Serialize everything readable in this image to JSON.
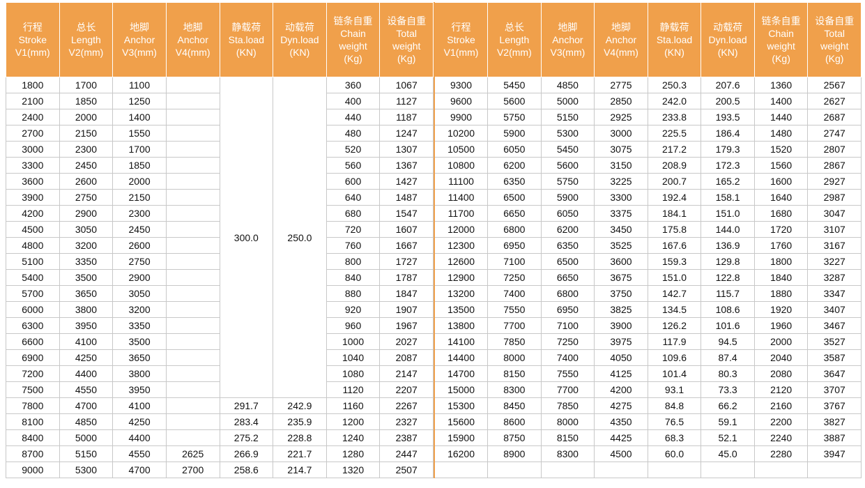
{
  "header": [
    [
      "行程",
      "Stroke",
      "V1(mm)"
    ],
    [
      "总长",
      "Length",
      "V2(mm)"
    ],
    [
      "地脚",
      "Anchor",
      "V3(mm)"
    ],
    [
      "地脚",
      "Anchor",
      "V4(mm)"
    ],
    [
      "静载荷",
      "Sta.load",
      "(KN)"
    ],
    [
      "动载荷",
      "Dyn.load",
      "(KN)"
    ],
    [
      "链条自重",
      "Chain",
      "weight",
      "(Kg)"
    ],
    [
      "设备自重",
      "Total",
      "weight",
      "(Kg)"
    ]
  ],
  "table": {
    "left": {
      "merged": [
        "300.0",
        "250.0"
      ],
      "rows": [
        [
          "1800",
          "1700",
          "1100",
          null,
          null,
          null,
          "360",
          "1067"
        ],
        [
          "2100",
          "1850",
          "1250",
          null,
          null,
          null,
          "400",
          "1127"
        ],
        [
          "2400",
          "2000",
          "1400",
          null,
          null,
          null,
          "440",
          "1187"
        ],
        [
          "2700",
          "2150",
          "1550",
          null,
          null,
          null,
          "480",
          "1247"
        ],
        [
          "3000",
          "2300",
          "1700",
          null,
          null,
          null,
          "520",
          "1307"
        ],
        [
          "3300",
          "2450",
          "1850",
          null,
          null,
          null,
          "560",
          "1367"
        ],
        [
          "3600",
          "2600",
          "2000",
          null,
          null,
          null,
          "600",
          "1427"
        ],
        [
          "3900",
          "2750",
          "2150",
          null,
          null,
          null,
          "640",
          "1487"
        ],
        [
          "4200",
          "2900",
          "2300",
          null,
          null,
          null,
          "680",
          "1547"
        ],
        [
          "4500",
          "3050",
          "2450",
          null,
          null,
          null,
          "720",
          "1607"
        ],
        [
          "4800",
          "3200",
          "2600",
          null,
          null,
          null,
          "760",
          "1667"
        ],
        [
          "5100",
          "3350",
          "2750",
          null,
          null,
          null,
          "800",
          "1727"
        ],
        [
          "5400",
          "3500",
          "2900",
          null,
          null,
          null,
          "840",
          "1787"
        ],
        [
          "5700",
          "3650",
          "3050",
          null,
          null,
          null,
          "880",
          "1847"
        ],
        [
          "6000",
          "3800",
          "3200",
          null,
          null,
          null,
          "920",
          "1907"
        ],
        [
          "6300",
          "3950",
          "3350",
          null,
          null,
          null,
          "960",
          "1967"
        ],
        [
          "6600",
          "4100",
          "3500",
          null,
          null,
          null,
          "1000",
          "2027"
        ],
        [
          "6900",
          "4250",
          "3650",
          null,
          null,
          null,
          "1040",
          "2087"
        ],
        [
          "7200",
          "4400",
          "3800",
          null,
          null,
          null,
          "1080",
          "2147"
        ],
        [
          "7500",
          "4550",
          "3950",
          null,
          null,
          null,
          "1120",
          "2207"
        ],
        [
          "7800",
          "4700",
          "4100",
          null,
          "291.7",
          "242.9",
          "1160",
          "2267"
        ],
        [
          "8100",
          "4850",
          "4250",
          null,
          "283.4",
          "235.9",
          "1200",
          "2327"
        ],
        [
          "8400",
          "5000",
          "4400",
          null,
          "275.2",
          "228.8",
          "1240",
          "2387"
        ],
        [
          "8700",
          "5150",
          "4550",
          "2625",
          "266.9",
          "221.7",
          "1280",
          "2447"
        ],
        [
          "9000",
          "5300",
          "4700",
          "2700",
          "258.6",
          "214.7",
          "1320",
          "2507"
        ]
      ]
    },
    "right": {
      "rows": [
        [
          "9300",
          "5450",
          "4850",
          "2775",
          "250.3",
          "207.6",
          "1360",
          "2567"
        ],
        [
          "9600",
          "5600",
          "5000",
          "2850",
          "242.0",
          "200.5",
          "1400",
          "2627"
        ],
        [
          "9900",
          "5750",
          "5150",
          "2925",
          "233.8",
          "193.5",
          "1440",
          "2687"
        ],
        [
          "10200",
          "5900",
          "5300",
          "3000",
          "225.5",
          "186.4",
          "1480",
          "2747"
        ],
        [
          "10500",
          "6050",
          "5450",
          "3075",
          "217.2",
          "179.3",
          "1520",
          "2807"
        ],
        [
          "10800",
          "6200",
          "5600",
          "3150",
          "208.9",
          "172.3",
          "1560",
          "2867"
        ],
        [
          "11100",
          "6350",
          "5750",
          "3225",
          "200.7",
          "165.2",
          "1600",
          "2927"
        ],
        [
          "11400",
          "6500",
          "5900",
          "3300",
          "192.4",
          "158.1",
          "1640",
          "2987"
        ],
        [
          "11700",
          "6650",
          "6050",
          "3375",
          "184.1",
          "151.0",
          "1680",
          "3047"
        ],
        [
          "12000",
          "6800",
          "6200",
          "3450",
          "175.8",
          "144.0",
          "1720",
          "3107"
        ],
        [
          "12300",
          "6950",
          "6350",
          "3525",
          "167.6",
          "136.9",
          "1760",
          "3167"
        ],
        [
          "12600",
          "7100",
          "6500",
          "3600",
          "159.3",
          "129.8",
          "1800",
          "3227"
        ],
        [
          "12900",
          "7250",
          "6650",
          "3675",
          "151.0",
          "122.8",
          "1840",
          "3287"
        ],
        [
          "13200",
          "7400",
          "6800",
          "3750",
          "142.7",
          "115.7",
          "1880",
          "3347"
        ],
        [
          "13500",
          "7550",
          "6950",
          "3825",
          "134.5",
          "108.6",
          "1920",
          "3407"
        ],
        [
          "13800",
          "7700",
          "7100",
          "3900",
          "126.2",
          "101.6",
          "1960",
          "3467"
        ],
        [
          "14100",
          "7850",
          "7250",
          "3975",
          "117.9",
          "94.5",
          "2000",
          "3527"
        ],
        [
          "14400",
          "8000",
          "7400",
          "4050",
          "109.6",
          "87.4",
          "2040",
          "3587"
        ],
        [
          "14700",
          "8150",
          "7550",
          "4125",
          "101.4",
          "80.3",
          "2080",
          "3647"
        ],
        [
          "15000",
          "8300",
          "7700",
          "4200",
          "93.1",
          "73.3",
          "2120",
          "3707"
        ],
        [
          "15300",
          "8450",
          "7850",
          "4275",
          "84.8",
          "66.2",
          "2160",
          "3767"
        ],
        [
          "15600",
          "8600",
          "8000",
          "4350",
          "76.5",
          "59.1",
          "2200",
          "3827"
        ],
        [
          "15900",
          "8750",
          "8150",
          "4425",
          "68.3",
          "52.1",
          "2240",
          "3887"
        ],
        [
          "16200",
          "8900",
          "8300",
          "4500",
          "60.0",
          "45.0",
          "2280",
          "3947"
        ]
      ]
    }
  }
}
